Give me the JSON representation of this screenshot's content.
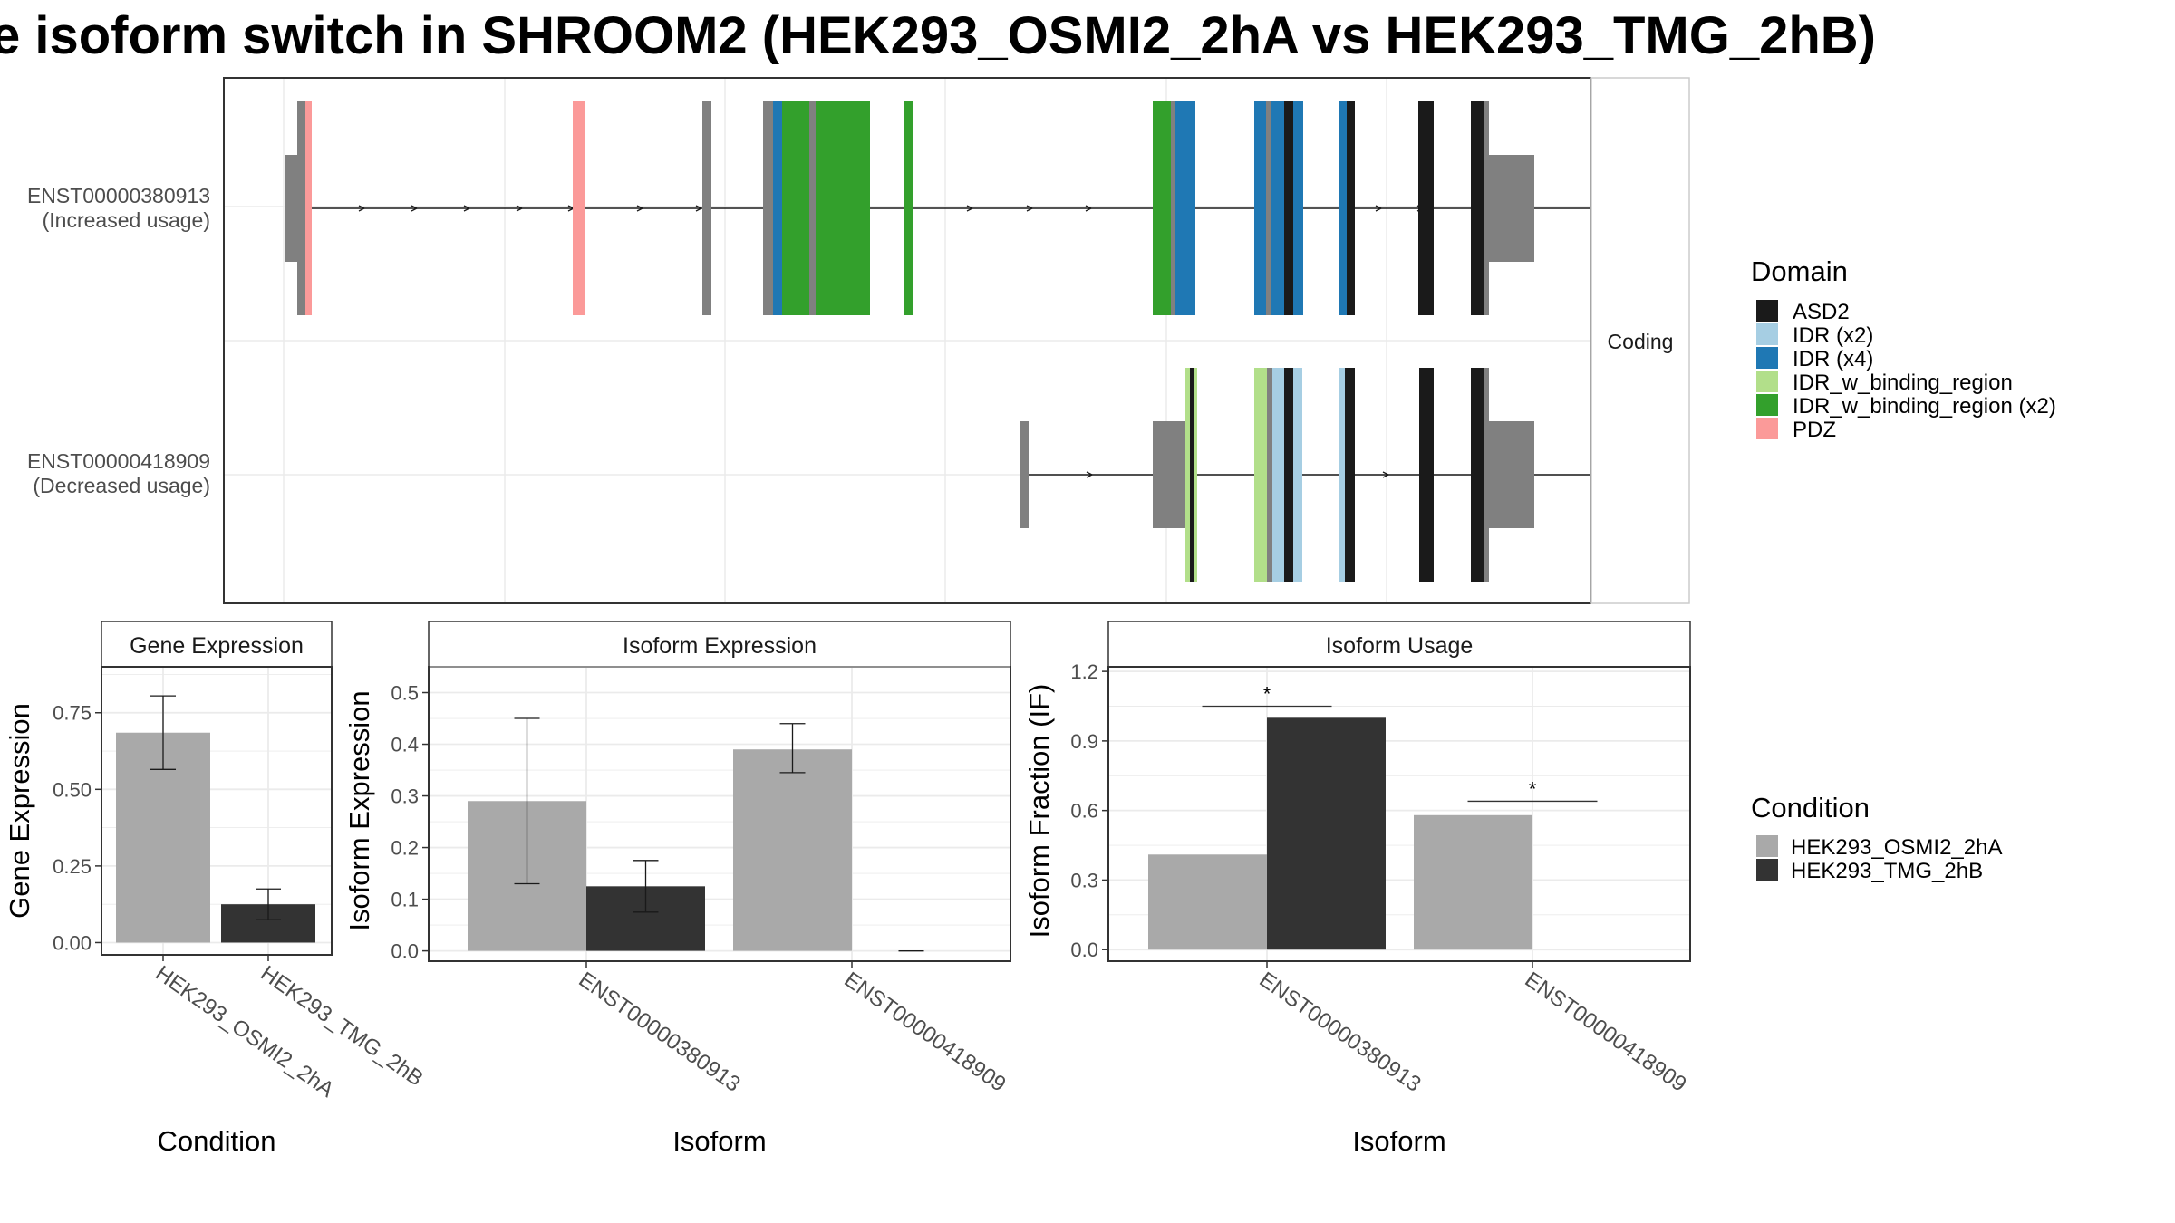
{
  "title": "e isoform switch in SHROOM2 (HEK293_OSMI2_2hA vs HEK293_TMG_2hB)",
  "colors": {
    "ASD2": "#1a1a1a",
    "IDR (x2)": "#a6cee3",
    "IDR (x4)": "#1f78b4",
    "IDR_w_binding_region": "#b2df8a",
    "IDR_w_binding_region (x2)": "#33a02c",
    "PDZ": "#fb9a99",
    "none": "#808080",
    "HEK293_OSMI2_2hA": "#a9a9a9",
    "HEK293_TMG_2hB": "#333333"
  },
  "structure": {
    "facet_label": "Coding",
    "isoforms": [
      {
        "id": "ENST00000380913",
        "usage": "(Increased usage)"
      },
      {
        "id": "ENST00000418909",
        "usage": "(Decreased usage)"
      }
    ],
    "legend_title": "Domain",
    "legend_items": [
      "ASD2",
      "IDR (x2)",
      "IDR (x4)",
      "IDR_w_binding_region",
      "IDR_w_binding_region (x2)",
      "PDZ"
    ]
  },
  "condition_legend": {
    "title": "Condition",
    "items": [
      "HEK293_OSMI2_2hA",
      "HEK293_TMG_2hB"
    ]
  },
  "chart_data": [
    {
      "type": "bar",
      "title": "Gene Expression",
      "xlabel": "Condition",
      "ylabel": "Gene Expression",
      "categories": [
        "HEK293_OSMI2_2hA",
        "HEK293_TMG_2hB"
      ],
      "values": [
        0.685,
        0.125
      ],
      "errors": [
        [
          0.565,
          0.805
        ],
        [
          0.075,
          0.175
        ]
      ],
      "ylim": [
        -0.04,
        0.9
      ],
      "yticks": [
        "0.00",
        "0.25",
        "0.50",
        "0.75"
      ],
      "grid": true
    },
    {
      "type": "bar",
      "title": "Isoform Expression",
      "xlabel": "Isoform",
      "ylabel": "Isoform Expression",
      "categories": [
        "ENST00000380913",
        "ENST00000418909"
      ],
      "series": [
        {
          "name": "HEK293_OSMI2_2hA",
          "values": [
            0.29,
            0.39
          ],
          "errors": [
            [
              0.13,
              0.45
            ],
            [
              0.345,
              0.44
            ]
          ]
        },
        {
          "name": "HEK293_TMG_2hB",
          "values": [
            0.125,
            0.0
          ],
          "errors": [
            [
              0.075,
              0.175
            ],
            [
              0.0,
              0.0
            ]
          ]
        }
      ],
      "ylim": [
        -0.02,
        0.55
      ],
      "yticks": [
        "0.0",
        "0.1",
        "0.2",
        "0.3",
        "0.4",
        "0.5"
      ],
      "grid": true
    },
    {
      "type": "bar",
      "title": "Isoform Usage",
      "xlabel": "Isoform",
      "ylabel": "Isoform Fraction (IF)",
      "categories": [
        "ENST00000380913",
        "ENST00000418909"
      ],
      "series": [
        {
          "name": "HEK293_OSMI2_2hA",
          "values": [
            0.41,
            0.58
          ]
        },
        {
          "name": "HEK293_TMG_2hB",
          "values": [
            1.0,
            0.0
          ]
        }
      ],
      "significance": [
        {
          "category": "ENST00000380913",
          "label": "*",
          "y": 1.05
        },
        {
          "category": "ENST00000418909",
          "label": "*",
          "y": 0.64
        }
      ],
      "ylim": [
        -0.05,
        1.22
      ],
      "yticks": [
        "0.0",
        "0.3",
        "0.6",
        "0.9",
        "1.2"
      ],
      "grid": true
    }
  ]
}
